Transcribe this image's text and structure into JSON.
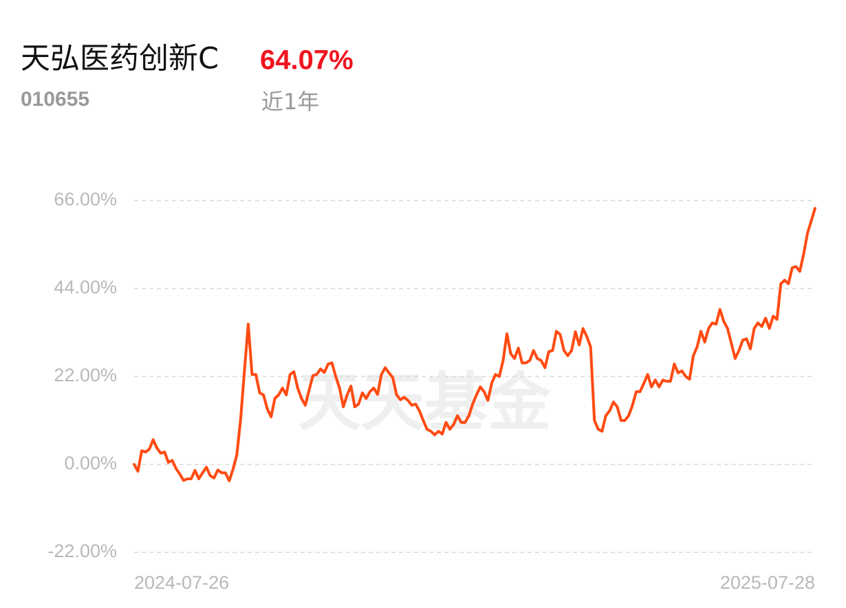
{
  "header": {
    "title": "天弘医药创新C",
    "return_label": "64.07%",
    "code": "010655",
    "period": "近1年"
  },
  "watermark": "天天基金",
  "chart_data": {
    "type": "line",
    "color": "#ff4b12",
    "grid": true,
    "categories": [
      "2024-07-26",
      null,
      null,
      null,
      null,
      null,
      null,
      null,
      null,
      null,
      null,
      null,
      null,
      null,
      null,
      null,
      null,
      null,
      null,
      null,
      null,
      null,
      null,
      null,
      null,
      null,
      null,
      null,
      null,
      null,
      null,
      null,
      null,
      null,
      null,
      null,
      null,
      null,
      null,
      null,
      null,
      null,
      null,
      null,
      null,
      null,
      null,
      null,
      null,
      null,
      null,
      null,
      null,
      null,
      null,
      null,
      null,
      null,
      null,
      null,
      null,
      null,
      null,
      null,
      null,
      null,
      null,
      null,
      null,
      null,
      null,
      null,
      null,
      null,
      null,
      null,
      null,
      null,
      null,
      null,
      null,
      null,
      null,
      null,
      null,
      null,
      null,
      null,
      null,
      null,
      null,
      null,
      null,
      null,
      null,
      null,
      null,
      null,
      null,
      null,
      null,
      null,
      null,
      null,
      null,
      null,
      null,
      null,
      null,
      null,
      null,
      null,
      null,
      null,
      null,
      null,
      null,
      null,
      null,
      null,
      null,
      null,
      null,
      null,
      null,
      null,
      null,
      null,
      null,
      null,
      null,
      null,
      null,
      null,
      null,
      null,
      null,
      null,
      null,
      null,
      null,
      null,
      null,
      null,
      null,
      null,
      null,
      null,
      null,
      null,
      null,
      null,
      null,
      null,
      null,
      null,
      null,
      null,
      null,
      null,
      null,
      null,
      null,
      null,
      null,
      null,
      null,
      null,
      null,
      null,
      null,
      null,
      null,
      null,
      null,
      null,
      null,
      null,
      null,
      "2025-07-28"
    ],
    "values": [
      0,
      -1.7,
      3.4,
      3.1,
      3.8,
      6.2,
      4.1,
      2.8,
      3.1,
      0.5,
      1.0,
      -1.0,
      -2.4,
      -4.0,
      -3.6,
      -3.6,
      -1.5,
      -3.6,
      -2.1,
      -0.7,
      -2.8,
      -3.4,
      -1.4,
      -2.1,
      -2.1,
      -4.1,
      -1.2,
      2.4,
      11.3,
      23.4,
      35.1,
      22.5,
      22.5,
      17.9,
      17.4,
      13.9,
      11.9,
      16.5,
      17.4,
      19.1,
      17.4,
      22.5,
      23.2,
      19.1,
      16.5,
      14.8,
      18.6,
      22.2,
      22.5,
      23.9,
      23.0,
      25.1,
      25.4,
      22.0,
      19.1,
      14.4,
      17.4,
      19.6,
      14.4,
      15.1,
      17.9,
      16.5,
      18.2,
      19.1,
      17.5,
      22.5,
      24.2,
      22.9,
      21.7,
      17.4,
      16.2,
      16.8,
      16.0,
      14.8,
      15.1,
      13.4,
      11.0,
      8.8,
      8.3,
      7.4,
      8.3,
      7.6,
      10.5,
      8.8,
      10.0,
      12.2,
      10.5,
      10.5,
      12.2,
      15.1,
      17.4,
      19.4,
      18.2,
      16.0,
      20.3,
      22.5,
      22.0,
      26.0,
      32.7,
      27.7,
      26.5,
      29.1,
      25.4,
      25.4,
      26.0,
      28.5,
      26.5,
      26.0,
      24.2,
      28.2,
      28.5,
      33.3,
      32.5,
      28.5,
      27.2,
      28.5,
      33.2,
      29.9,
      34.0,
      32.0,
      29.4,
      11.0,
      8.8,
      8.3,
      12.2,
      13.4,
      15.6,
      14.4,
      11.0,
      11.0,
      12.2,
      14.8,
      18.2,
      18.2,
      20.3,
      22.5,
      19.4,
      21.1,
      19.4,
      21.1,
      20.8,
      20.8,
      25.1,
      22.9,
      23.4,
      22.0,
      21.3,
      27.2,
      29.4,
      33.3,
      30.6,
      34.0,
      35.4,
      35.1,
      38.8,
      35.8,
      34.0,
      30.3,
      26.5,
      28.5,
      31.1,
      31.4,
      28.9,
      34.0,
      35.4,
      34.5,
      36.6,
      34.0,
      37.1,
      36.3,
      45.2,
      46.1,
      45.2,
      49.2,
      49.5,
      48.3,
      52.6,
      57.8,
      60.9,
      64.07
    ],
    "ylim": [
      -22,
      66
    ],
    "yticks": [
      {
        "value": 66,
        "label": "66.00%"
      },
      {
        "value": 44,
        "label": "44.00%"
      },
      {
        "value": 22,
        "label": "22.00%"
      },
      {
        "value": 0,
        "label": "0.00%"
      },
      {
        "value": -22,
        "label": "-22.00%"
      }
    ]
  }
}
